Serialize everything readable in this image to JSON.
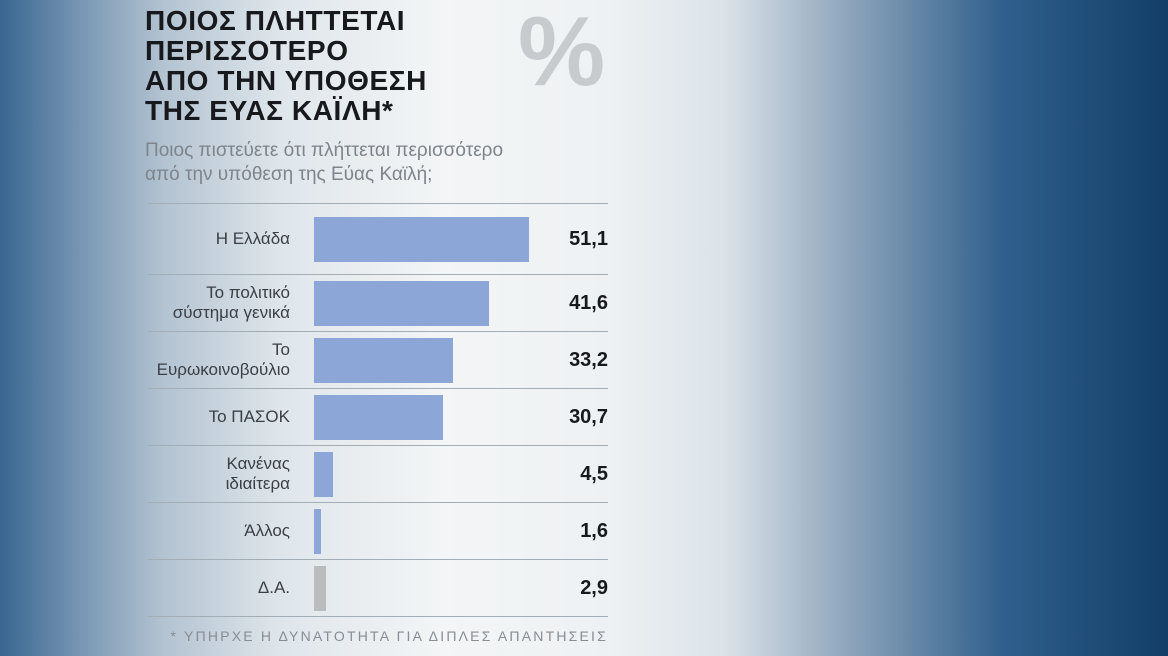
{
  "header": {
    "title": "ΠΟΙΟΣ ΠΛΗΤΤΕΤΑΙ\nΠΕΡΙΣΣΟΤΕΡΟ\nΑΠΟ ΤΗΝ ΥΠΟΘΕΣΗ\nΤΗΣ ΕΥΑΣ ΚΑΪΛΗ*",
    "subtitle": "Ποιος πιστεύετε ότι πλήττεται περισσότερο\nαπό την υπόθεση της Εύας Καϊλή;",
    "watermark": "%"
  },
  "footer": {
    "note": "* ΥΠΗΡΧΕ Η ΔΥΝΑΤΟΤΗΤΑ ΓΙΑ ΔΙΠΛΕΣ ΑΠΑΝΤΗΣΕΙΣ"
  },
  "colors": {
    "bar_blue": "#8ca6d8",
    "bar_gray": "#babcbe",
    "background_left": "#3a6691",
    "background_right": "#123e68",
    "separator": "#a3adb5"
  },
  "chart_data": {
    "type": "bar",
    "orientation": "horizontal",
    "title": "ΠΟΙΟΣ ΠΛΗΤΤΕΤΑΙ ΠΕΡΙΣΣΟΤΕΡΟ ΑΠΟ ΤΗΝ ΥΠΟΘΕΣΗ ΤΗΣ ΕΥΑΣ ΚΑΪΛΗ*",
    "subtitle": "Ποιος πιστεύετε ότι πλήττεται περισσότερο από την υπόθεση της Εύας Καϊλή;",
    "unit": "%",
    "xlim": [
      0,
      55
    ],
    "grid": false,
    "legend": false,
    "categories": [
      "Η Ελλάδα",
      "Το πολιτικό σύστημα γενικά",
      "Το Ευρωκοινοβούλιο",
      "Το ΠΑΣΟΚ",
      "Κανένας ιδιαίτερα",
      "Άλλος",
      "Δ.Α."
    ],
    "values": [
      51.1,
      41.6,
      33.2,
      30.7,
      4.5,
      1.6,
      2.9
    ],
    "rows": [
      {
        "label": "Η Ελλάδα",
        "value": 51.1,
        "display": "51,1",
        "muted": false
      },
      {
        "label": "Το πολιτικό\nσύστημα γενικά",
        "value": 41.6,
        "display": "41,6",
        "muted": false
      },
      {
        "label": "Το\nΕυρωκοινοβούλιο",
        "value": 33.2,
        "display": "33,2",
        "muted": false
      },
      {
        "label": "Το ΠΑΣΟΚ",
        "value": 30.7,
        "display": "30,7",
        "muted": false
      },
      {
        "label": "Κανένας\nιδιαίτερα",
        "value": 4.5,
        "display": "4,5",
        "muted": false
      },
      {
        "label": "Άλλος",
        "value": 1.6,
        "display": "1,6",
        "muted": false
      },
      {
        "label": "Δ.Α.",
        "value": 2.9,
        "display": "2,9",
        "muted": true
      }
    ],
    "footnote": "* ΥΠΗΡΧΕ Η ΔΥΝΑΤΟΤΗΤΑ ΓΙΑ ΔΙΠΛΕΣ ΑΠΑΝΤΗΣΕΙΣ"
  }
}
